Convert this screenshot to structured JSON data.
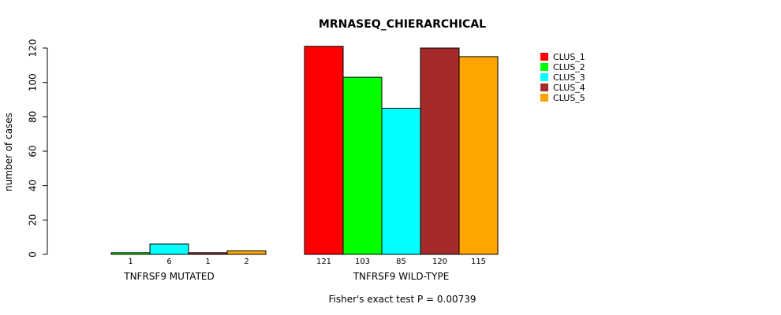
{
  "chart_data": {
    "type": "bar",
    "title": "MRNASEQ_CHIERARCHICAL",
    "ylabel": "number of cases",
    "ylim": [
      0,
      120
    ],
    "yticks": [
      0,
      20,
      40,
      60,
      80,
      100,
      120
    ],
    "groups": [
      {
        "name": "TNFRSF9 MUTATED",
        "values": [
          0,
          1,
          6,
          1,
          2
        ],
        "labels": [
          "",
          "1",
          "6",
          "1",
          "2"
        ]
      },
      {
        "name": "TNFRSF9 WILD-TYPE",
        "values": [
          121,
          103,
          85,
          120,
          115
        ],
        "labels": [
          "121",
          "103",
          "85",
          "120",
          "115"
        ]
      }
    ],
    "series": [
      {
        "name": "CLUS_1",
        "color": "#ff0000"
      },
      {
        "name": "CLUS_2",
        "color": "#00ff00"
      },
      {
        "name": "CLUS_3",
        "color": "#00ffff"
      },
      {
        "name": "CLUS_4",
        "color": "#a52a2a"
      },
      {
        "name": "CLUS_5",
        "color": "#ffa500"
      }
    ],
    "legend_position": "top-right",
    "footnote": "Fisher's exact test P = 0.00739"
  }
}
